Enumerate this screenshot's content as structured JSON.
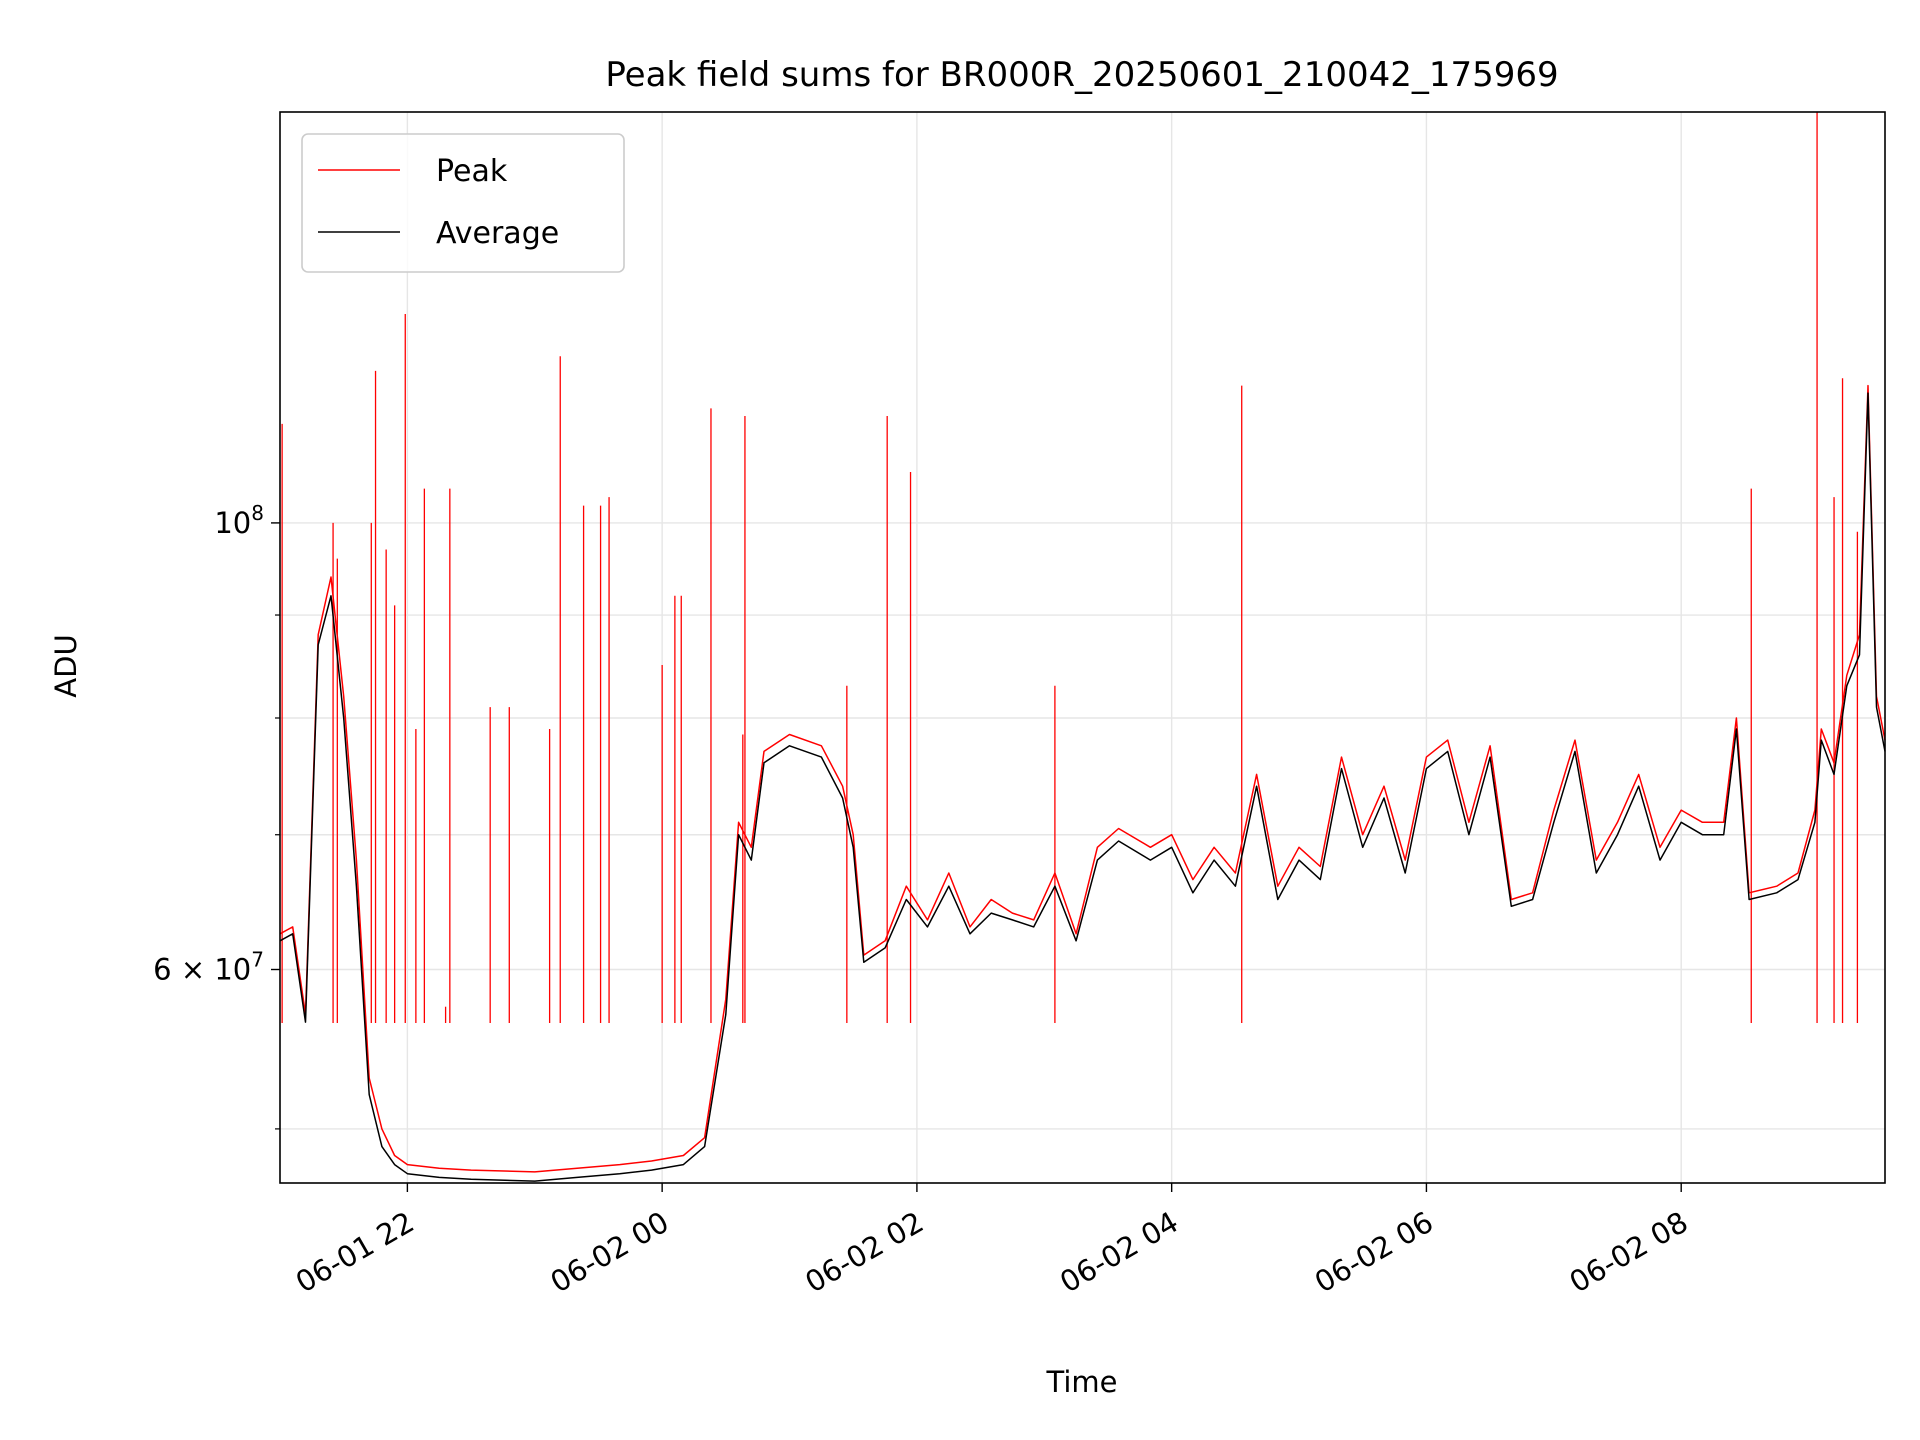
{
  "chart_data": {
    "type": "line",
    "title": "Peak field sums for BR000R_20250601_210042_175969",
    "xlabel": "Time",
    "ylabel": "ADU",
    "yscale": "log",
    "grid": true,
    "legend_position": "top-left",
    "x_range": [
      "2025-06-01 21:00",
      "2025-06-02 09:36"
    ],
    "ylim": [
      47000000,
      160000000
    ],
    "x_ticks": [
      {
        "t": "2025-06-01 22:00",
        "label": "06-01 22"
      },
      {
        "t": "2025-06-02 00:00",
        "label": "06-02 00"
      },
      {
        "t": "2025-06-02 02:00",
        "label": "06-02 02"
      },
      {
        "t": "2025-06-02 04:00",
        "label": "06-02 04"
      },
      {
        "t": "2025-06-02 06:00",
        "label": "06-02 06"
      },
      {
        "t": "2025-06-02 08:00",
        "label": "06-02 08"
      }
    ],
    "y_major_ticks": [
      {
        "value": 60000000,
        "label_base": "6 × 10",
        "label_exp": "7"
      },
      {
        "value": 100000000,
        "label_base": "10",
        "label_exp": "8"
      }
    ],
    "y_minor_ticks": [
      50000000,
      70000000,
      80000000,
      90000000
    ],
    "series": [
      {
        "name": "Peak",
        "color": "#ff0000",
        "points": [
          [
            "2025-06-01 21:00",
            62500000
          ],
          [
            "2025-06-01 21:06",
            63000000
          ],
          [
            "2025-06-01 21:12",
            57000000
          ],
          [
            "2025-06-01 21:18",
            88000000
          ],
          [
            "2025-06-01 21:24",
            94000000
          ],
          [
            "2025-06-01 21:30",
            82000000
          ],
          [
            "2025-06-01 21:36",
            68000000
          ],
          [
            "2025-06-01 21:42",
            53000000
          ],
          [
            "2025-06-01 21:48",
            50000000
          ],
          [
            "2025-06-01 21:54",
            48500000
          ],
          [
            "2025-06-01 22:00",
            48000000
          ],
          [
            "2025-06-01 22:15",
            47800000
          ],
          [
            "2025-06-01 22:30",
            47700000
          ],
          [
            "2025-06-01 23:00",
            47600000
          ],
          [
            "2025-06-01 23:20",
            47800000
          ],
          [
            "2025-06-01 23:40",
            48000000
          ],
          [
            "2025-06-01 23:55",
            48200000
          ],
          [
            "2025-06-02 00:10",
            48500000
          ],
          [
            "2025-06-02 00:20",
            49500000
          ],
          [
            "2025-06-02 00:30",
            58000000
          ],
          [
            "2025-06-02 00:36",
            71000000
          ],
          [
            "2025-06-02 00:42",
            69000000
          ],
          [
            "2025-06-02 00:48",
            77000000
          ],
          [
            "2025-06-02 01:00",
            78500000
          ],
          [
            "2025-06-02 01:15",
            77500000
          ],
          [
            "2025-06-02 01:25",
            74000000
          ],
          [
            "2025-06-02 01:30",
            70000000
          ],
          [
            "2025-06-02 01:35",
            61000000
          ],
          [
            "2025-06-02 01:45",
            62000000
          ],
          [
            "2025-06-02 01:55",
            66000000
          ],
          [
            "2025-06-02 02:05",
            63500000
          ],
          [
            "2025-06-02 02:15",
            67000000
          ],
          [
            "2025-06-02 02:25",
            63000000
          ],
          [
            "2025-06-02 02:35",
            65000000
          ],
          [
            "2025-06-02 02:45",
            64000000
          ],
          [
            "2025-06-02 02:55",
            63500000
          ],
          [
            "2025-06-02 03:05",
            67000000
          ],
          [
            "2025-06-02 03:15",
            62500000
          ],
          [
            "2025-06-02 03:25",
            69000000
          ],
          [
            "2025-06-02 03:35",
            70500000
          ],
          [
            "2025-06-02 03:50",
            69000000
          ],
          [
            "2025-06-02 04:00",
            70000000
          ],
          [
            "2025-06-02 04:10",
            66500000
          ],
          [
            "2025-06-02 04:20",
            69000000
          ],
          [
            "2025-06-02 04:30",
            67000000
          ],
          [
            "2025-06-02 04:40",
            75000000
          ],
          [
            "2025-06-02 04:50",
            66000000
          ],
          [
            "2025-06-02 05:00",
            69000000
          ],
          [
            "2025-06-02 05:10",
            67500000
          ],
          [
            "2025-06-02 05:20",
            76500000
          ],
          [
            "2025-06-02 05:30",
            70000000
          ],
          [
            "2025-06-02 05:40",
            74000000
          ],
          [
            "2025-06-02 05:50",
            68000000
          ],
          [
            "2025-06-02 06:00",
            76500000
          ],
          [
            "2025-06-02 06:10",
            78000000
          ],
          [
            "2025-06-02 06:20",
            71000000
          ],
          [
            "2025-06-02 06:30",
            77500000
          ],
          [
            "2025-06-02 06:40",
            65000000
          ],
          [
            "2025-06-02 06:50",
            65500000
          ],
          [
            "2025-06-02 07:00",
            72000000
          ],
          [
            "2025-06-02 07:10",
            78000000
          ],
          [
            "2025-06-02 07:20",
            68000000
          ],
          [
            "2025-06-02 07:30",
            71000000
          ],
          [
            "2025-06-02 07:40",
            75000000
          ],
          [
            "2025-06-02 07:50",
            69000000
          ],
          [
            "2025-06-02 08:00",
            72000000
          ],
          [
            "2025-06-02 08:10",
            71000000
          ],
          [
            "2025-06-02 08:20",
            71000000
          ],
          [
            "2025-06-02 08:26",
            80000000
          ],
          [
            "2025-06-02 08:32",
            65500000
          ],
          [
            "2025-06-02 08:45",
            66000000
          ],
          [
            "2025-06-02 08:55",
            67000000
          ],
          [
            "2025-06-02 09:03",
            72000000
          ],
          [
            "2025-06-02 09:06",
            79000000
          ],
          [
            "2025-06-02 09:12",
            76000000
          ],
          [
            "2025-06-02 09:18",
            84000000
          ],
          [
            "2025-06-02 09:24",
            88000000
          ],
          [
            "2025-06-02 09:28",
            117000000
          ],
          [
            "2025-06-02 09:32",
            82000000
          ],
          [
            "2025-06-02 09:36",
            78000000
          ]
        ],
        "spikes": [
          [
            "2025-06-01 21:01",
            112000000
          ],
          [
            "2025-06-01 21:25",
            100000000
          ],
          [
            "2025-06-01 21:27",
            96000000
          ],
          [
            "2025-06-01 21:43",
            100000000
          ],
          [
            "2025-06-01 21:45",
            119000000
          ],
          [
            "2025-06-01 21:50",
            97000000
          ],
          [
            "2025-06-01 21:54",
            91000000
          ],
          [
            "2025-06-01 21:59",
            127000000
          ],
          [
            "2025-06-01 22:04",
            79000000
          ],
          [
            "2025-06-01 22:08",
            104000000
          ],
          [
            "2025-06-01 22:18",
            57500000
          ],
          [
            "2025-06-01 22:20",
            104000000
          ],
          [
            "2025-06-01 22:39",
            81000000
          ],
          [
            "2025-06-01 22:48",
            81000000
          ],
          [
            "2025-06-01 23:07",
            79000000
          ],
          [
            "2025-06-01 23:12",
            121000000
          ],
          [
            "2025-06-01 23:23",
            102000000
          ],
          [
            "2025-06-01 23:31",
            102000000
          ],
          [
            "2025-06-01 23:35",
            103000000
          ],
          [
            "2025-06-02 00:00",
            85000000
          ],
          [
            "2025-06-02 00:06",
            92000000
          ],
          [
            "2025-06-02 00:09",
            92000000
          ],
          [
            "2025-06-02 00:23",
            114000000
          ],
          [
            "2025-06-02 00:38",
            78500000
          ],
          [
            "2025-06-02 00:39",
            113000000
          ],
          [
            "2025-06-02 01:27",
            83000000
          ],
          [
            "2025-06-02 01:46",
            113000000
          ],
          [
            "2025-06-02 01:57",
            106000000
          ],
          [
            "2025-06-02 03:05",
            83000000
          ],
          [
            "2025-06-02 04:33",
            117000000
          ],
          [
            "2025-06-02 08:33",
            104000000
          ],
          [
            "2025-06-02 09:04",
            160000000
          ],
          [
            "2025-06-02 09:12",
            103000000
          ],
          [
            "2025-06-02 09:16",
            118000000
          ],
          [
            "2025-06-02 09:23",
            99000000
          ]
        ]
      },
      {
        "name": "Average",
        "color": "#000000",
        "points": [
          [
            "2025-06-01 21:00",
            62000000
          ],
          [
            "2025-06-01 21:06",
            62500000
          ],
          [
            "2025-06-01 21:12",
            56500000
          ],
          [
            "2025-06-01 21:18",
            87000000
          ],
          [
            "2025-06-01 21:24",
            92000000
          ],
          [
            "2025-06-01 21:30",
            80000000
          ],
          [
            "2025-06-01 21:36",
            66000000
          ],
          [
            "2025-06-01 21:42",
            52000000
          ],
          [
            "2025-06-01 21:48",
            49000000
          ],
          [
            "2025-06-01 21:54",
            48000000
          ],
          [
            "2025-06-01 22:00",
            47500000
          ],
          [
            "2025-06-01 22:15",
            47300000
          ],
          [
            "2025-06-01 22:30",
            47200000
          ],
          [
            "2025-06-01 23:00",
            47100000
          ],
          [
            "2025-06-01 23:20",
            47300000
          ],
          [
            "2025-06-01 23:40",
            47500000
          ],
          [
            "2025-06-01 23:55",
            47700000
          ],
          [
            "2025-06-02 00:10",
            48000000
          ],
          [
            "2025-06-02 00:20",
            49000000
          ],
          [
            "2025-06-02 00:30",
            57000000
          ],
          [
            "2025-06-02 00:36",
            70000000
          ],
          [
            "2025-06-02 00:42",
            68000000
          ],
          [
            "2025-06-02 00:48",
            76000000
          ],
          [
            "2025-06-02 01:00",
            77500000
          ],
          [
            "2025-06-02 01:15",
            76500000
          ],
          [
            "2025-06-02 01:25",
            73000000
          ],
          [
            "2025-06-02 01:30",
            69000000
          ],
          [
            "2025-06-02 01:35",
            60500000
          ],
          [
            "2025-06-02 01:45",
            61500000
          ],
          [
            "2025-06-02 01:55",
            65000000
          ],
          [
            "2025-06-02 02:05",
            63000000
          ],
          [
            "2025-06-02 02:15",
            66000000
          ],
          [
            "2025-06-02 02:25",
            62500000
          ],
          [
            "2025-06-02 02:35",
            64000000
          ],
          [
            "2025-06-02 02:45",
            63500000
          ],
          [
            "2025-06-02 02:55",
            63000000
          ],
          [
            "2025-06-02 03:05",
            66000000
          ],
          [
            "2025-06-02 03:15",
            62000000
          ],
          [
            "2025-06-02 03:25",
            68000000
          ],
          [
            "2025-06-02 03:35",
            69500000
          ],
          [
            "2025-06-02 03:50",
            68000000
          ],
          [
            "2025-06-02 04:00",
            69000000
          ],
          [
            "2025-06-02 04:10",
            65500000
          ],
          [
            "2025-06-02 04:20",
            68000000
          ],
          [
            "2025-06-02 04:30",
            66000000
          ],
          [
            "2025-06-02 04:40",
            74000000
          ],
          [
            "2025-06-02 04:50",
            65000000
          ],
          [
            "2025-06-02 05:00",
            68000000
          ],
          [
            "2025-06-02 05:10",
            66500000
          ],
          [
            "2025-06-02 05:20",
            75500000
          ],
          [
            "2025-06-02 05:30",
            69000000
          ],
          [
            "2025-06-02 05:40",
            73000000
          ],
          [
            "2025-06-02 05:50",
            67000000
          ],
          [
            "2025-06-02 06:00",
            75500000
          ],
          [
            "2025-06-02 06:10",
            77000000
          ],
          [
            "2025-06-02 06:20",
            70000000
          ],
          [
            "2025-06-02 06:30",
            76500000
          ],
          [
            "2025-06-02 06:40",
            64500000
          ],
          [
            "2025-06-02 06:50",
            65000000
          ],
          [
            "2025-06-02 07:00",
            71000000
          ],
          [
            "2025-06-02 07:10",
            77000000
          ],
          [
            "2025-06-02 07:20",
            67000000
          ],
          [
            "2025-06-02 07:30",
            70000000
          ],
          [
            "2025-06-02 07:40",
            74000000
          ],
          [
            "2025-06-02 07:50",
            68000000
          ],
          [
            "2025-06-02 08:00",
            71000000
          ],
          [
            "2025-06-02 08:10",
            70000000
          ],
          [
            "2025-06-02 08:20",
            70000000
          ],
          [
            "2025-06-02 08:26",
            79000000
          ],
          [
            "2025-06-02 08:32",
            65000000
          ],
          [
            "2025-06-02 08:45",
            65500000
          ],
          [
            "2025-06-02 08:55",
            66500000
          ],
          [
            "2025-06-02 09:03",
            71000000
          ],
          [
            "2025-06-02 09:06",
            78000000
          ],
          [
            "2025-06-02 09:12",
            75000000
          ],
          [
            "2025-06-02 09:18",
            83000000
          ],
          [
            "2025-06-02 09:24",
            86000000
          ],
          [
            "2025-06-02 09:28",
            116000000
          ],
          [
            "2025-06-02 09:32",
            81000000
          ],
          [
            "2025-06-02 09:36",
            77000000
          ]
        ]
      }
    ]
  }
}
